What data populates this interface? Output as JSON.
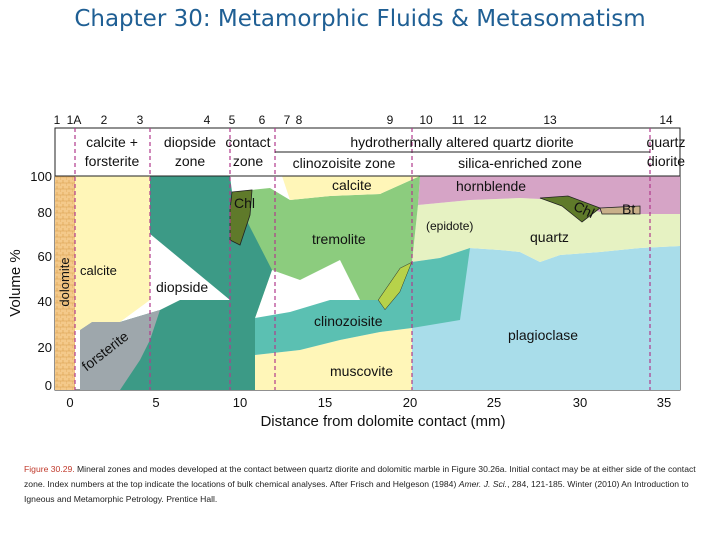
{
  "slide_title": "Chapter 30: Metamorphic Fluids & Metasomatism",
  "index_numbers": [
    "1",
    "1A",
    "2",
    "3",
    "4",
    "5",
    "6",
    "7",
    "8",
    "9",
    "10",
    "11",
    "12",
    "13",
    "14"
  ],
  "zone_headers": {
    "calcite_forsterite": [
      "calcite +",
      "forsterite"
    ],
    "diopside": [
      "diopside",
      "zone"
    ],
    "contact": [
      "contact",
      "zone"
    ],
    "hydrothermal": "hydrothermally altered quartz diorite",
    "clinozoisite": "clinozoisite zone",
    "silica": "silica-enriched zone",
    "quartz_diorite": [
      "quartz",
      "diorite"
    ]
  },
  "mineral_labels": {
    "dolomite": "dolomite",
    "calcite_left": "calcite",
    "forsterite": "forsterite",
    "diopside": "diopside",
    "chl1": "Chl",
    "calcite_top": "calcite",
    "tremolite": "tremolite",
    "clinozoisite": "clinozoisite",
    "muscovite": "muscovite",
    "epidote": "(epidote)",
    "hornblende": "hornblende",
    "chl2": "Chl",
    "bt": "Bt",
    "quartz": "quartz",
    "plagioclase": "plagioclase"
  },
  "y_axis": {
    "label": "Volume %",
    "ticks": [
      "0",
      "20",
      "40",
      "60",
      "80",
      "100"
    ]
  },
  "x_axis": {
    "label": "Distance from dolomite contact (mm)",
    "ticks": [
      "0",
      "5",
      "10",
      "15",
      "20",
      "25",
      "30",
      "35"
    ]
  },
  "colors": {
    "dolomite": "#f4c98a",
    "calcite": "#fff6b8",
    "forsterite": "#9ea7ac",
    "diopside": "#3c9a86",
    "tremolite": "#8ccc7e",
    "chlorite": "#5f7a2a",
    "clinozoisite": "#5bc0b2",
    "muscovite": "#fff6b8",
    "hornblende": "#d6a4c6",
    "quartz": "#e6f2c2",
    "plagioclase": "#a9ddea",
    "epidote": "#b7d24a",
    "zone_boundary": "#b03a8c"
  },
  "caption": {
    "label": "Figure 30.29.",
    "text": " Mineral zones and modes developed at the contact between quartz diorite and dolomitic marble in Figure 30.26a. Initial contact may be at either side of the contact zone. Index numbers at the top indicate the locations of bulk chemical analyses. After Frisch and Helgeson (1984) ",
    "journal": "Amer. J. Sci.",
    "rest": ", 284, 121-185. Winter (2010) An Introduction to Igneous and Metamorphic Petrology. Prentice Hall."
  }
}
